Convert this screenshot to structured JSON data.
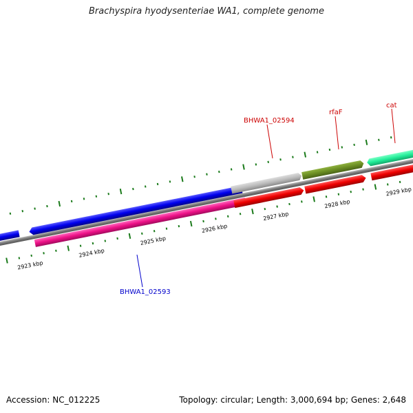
{
  "title": "Brachyspira hyodysenteriae WA1, complete genome",
  "footer": {
    "accession": "Accession: NC_012225",
    "summary": "Topology: circular; Length: 3,000,694 bp; Genes: 2,648"
  },
  "colors": {
    "backbone": "#777777",
    "tick": "#1a7a1a",
    "plus_label": "#cc0000",
    "minus_label": "#0000cc"
  },
  "ticks": {
    "labels": [
      "2923 kbp",
      "2924 kbp",
      "2925 kbp",
      "2926 kbp",
      "2927 kbp",
      "2928 kbp",
      "2929 kbp"
    ]
  },
  "features": [
    {
      "id": "blue-left",
      "strand": "upper",
      "color": "#0000ee",
      "direction": "left"
    },
    {
      "id": "blue-main",
      "strand": "upper",
      "color": "#0000ee",
      "direction": "left"
    },
    {
      "id": "pink-main",
      "strand": "lower",
      "color": "#ee1188",
      "direction": "right"
    },
    {
      "id": "gray",
      "strand": "upper",
      "color": "#bbbbbb",
      "direction": "right"
    },
    {
      "id": "olive",
      "strand": "upper",
      "color": "#6b8e23",
      "direction": "right"
    },
    {
      "id": "aqua",
      "strand": "upper",
      "color": "#22ee99",
      "direction": "left"
    },
    {
      "id": "red-1",
      "strand": "lower",
      "color": "#ee0000",
      "direction": "right"
    },
    {
      "id": "red-2",
      "strand": "lower",
      "color": "#ee0000",
      "direction": "right"
    },
    {
      "id": "red-3",
      "strand": "lower",
      "color": "#ee0000",
      "direction": "right"
    }
  ],
  "gene_labels": {
    "bhwa1_02594": "BHWA1_02594",
    "rfaf": "rfaF",
    "cat": "cat",
    "bhwa1_02593": "BHWA1_02593"
  }
}
